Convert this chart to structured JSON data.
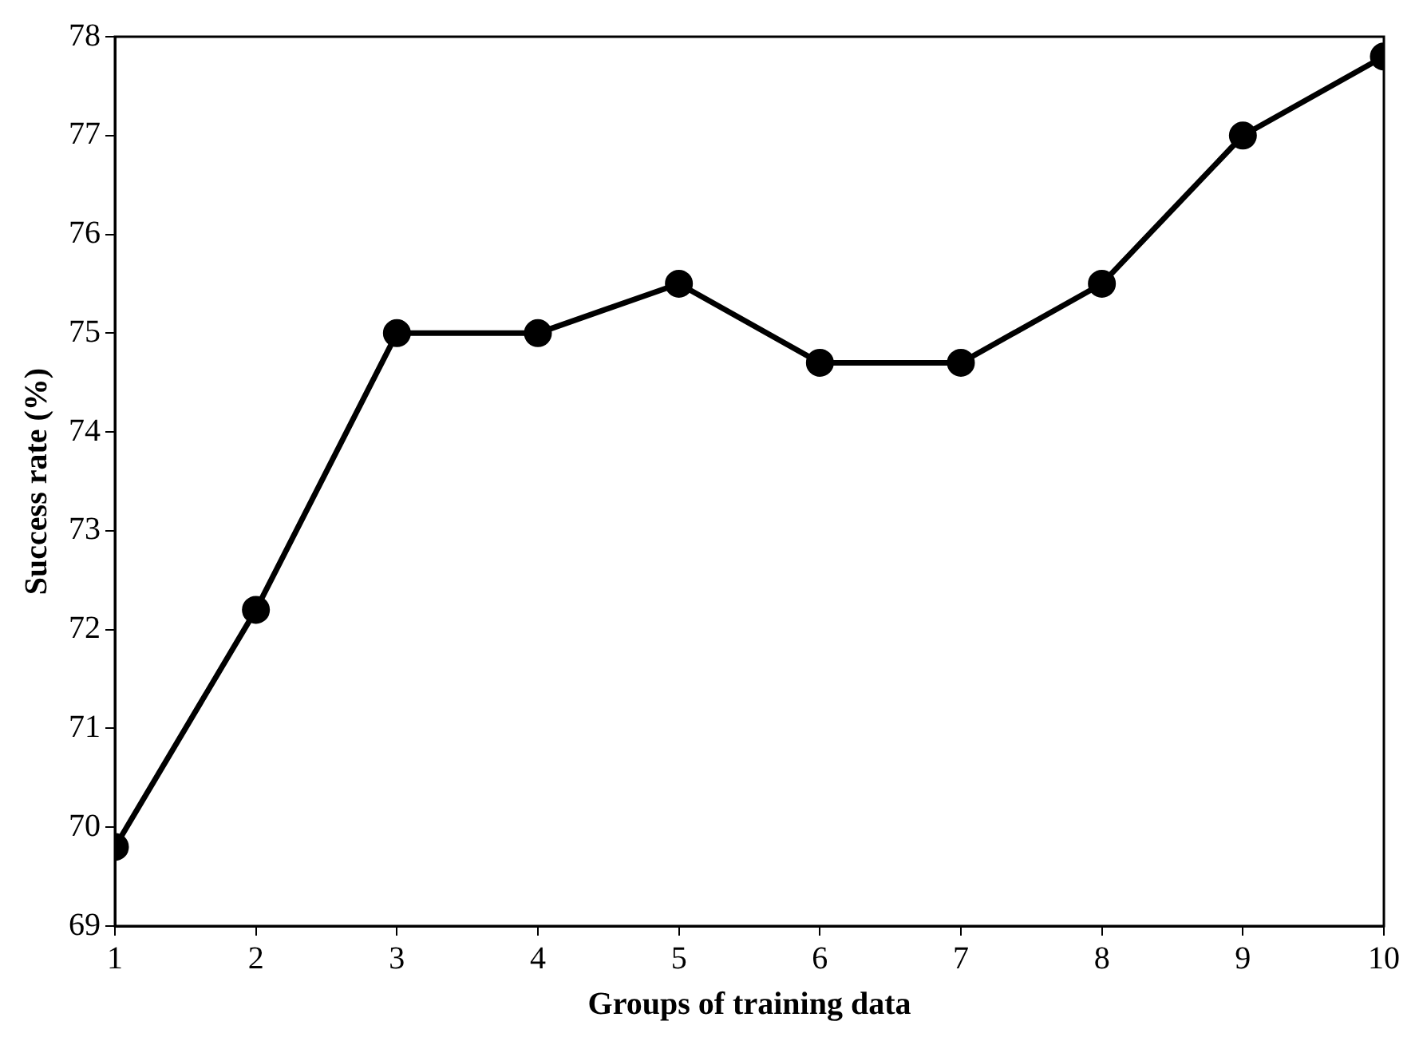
{
  "chart_data": {
    "type": "line",
    "xlabel": "Groups of training data",
    "ylabel": "Success rate (%)",
    "x": [
      1,
      2,
      3,
      4,
      5,
      6,
      7,
      8,
      9,
      10
    ],
    "series": [
      {
        "color": "#000000",
        "values": [
          69.8,
          72.2,
          75,
          75,
          75.5,
          74.7,
          74.7,
          75.5,
          77,
          77.8
        ]
      }
    ],
    "xlim": [
      1,
      10
    ],
    "xticks": [
      1,
      2,
      3,
      4,
      5,
      6,
      7,
      8,
      9,
      10
    ],
    "ylim": [
      69,
      78
    ],
    "yticks": [
      69,
      70,
      71,
      72,
      73,
      74,
      75,
      76,
      77,
      78
    ],
    "grid": false,
    "legend": false,
    "marker": "circle",
    "line_style": "solid"
  }
}
